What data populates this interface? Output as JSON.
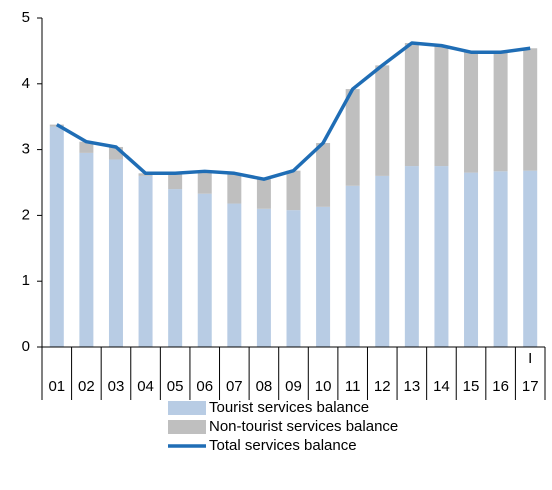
{
  "chart_data": {
    "type": "bar",
    "stacked": true,
    "categories": [
      "01",
      "02",
      "03",
      "04",
      "05",
      "06",
      "07",
      "08",
      "09",
      "10",
      "11",
      "12",
      "13",
      "14",
      "15",
      "16",
      "17"
    ],
    "period_labels": [
      null,
      null,
      null,
      null,
      null,
      null,
      null,
      null,
      null,
      null,
      null,
      null,
      null,
      null,
      null,
      null,
      "I"
    ],
    "series": [
      {
        "name": "Tourist services balance",
        "type": "bar",
        "color": "#b8cce4",
        "values": [
          3.35,
          2.95,
          2.85,
          2.6,
          2.4,
          2.33,
          2.18,
          2.1,
          2.08,
          2.13,
          2.45,
          2.6,
          2.75,
          2.75,
          2.65,
          2.67,
          2.68
        ]
      },
      {
        "name": "Non-tourist services balance",
        "type": "bar",
        "color": "#bfbfbf",
        "values": [
          0.03,
          0.17,
          0.19,
          0.04,
          0.24,
          0.34,
          0.46,
          0.45,
          0.6,
          0.97,
          1.47,
          1.68,
          1.87,
          1.83,
          1.83,
          1.81,
          1.86
        ]
      },
      {
        "name": "Total services balance",
        "type": "line",
        "color": "#1f6db5",
        "values": [
          3.38,
          3.12,
          3.04,
          2.64,
          2.64,
          2.67,
          2.64,
          2.55,
          2.68,
          3.1,
          3.92,
          4.28,
          4.62,
          4.58,
          4.48,
          4.48,
          4.54
        ]
      }
    ],
    "ylim": [
      0,
      5
    ],
    "yticks": [
      0,
      1,
      2,
      3,
      4,
      5
    ]
  }
}
